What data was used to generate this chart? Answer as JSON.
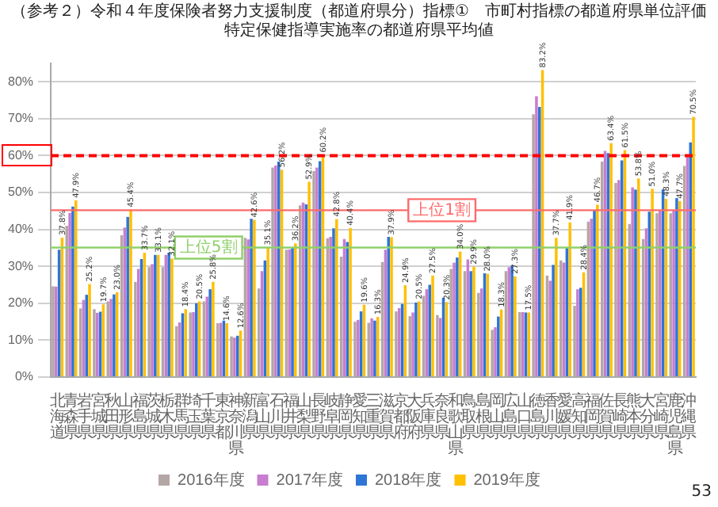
{
  "chart_data": {
    "type": "bar",
    "title": "（参考２）令和４年度保険者努力支援制度（都道府県分）指標①　市町村指標の都道府県単位評価",
    "subtitle": "特定保健指導実施率の都道府県平均値",
    "categories": [
      "北海道",
      "青森県",
      "岩手県",
      "宮城県",
      "秋田県",
      "山形県",
      "福島県",
      "茨城県",
      "栃木県",
      "群馬県",
      "埼玉県",
      "千葉県",
      "東京都",
      "神奈川県",
      "新潟県",
      "富山県",
      "石川県",
      "福井県",
      "山梨県",
      "長野県",
      "岐阜県",
      "静岡県",
      "愛知県",
      "三重県",
      "滋賀県",
      "京都府",
      "大阪府",
      "兵庫県",
      "奈良県",
      "和歌山県",
      "鳥取県",
      "島根県",
      "岡山県",
      "広島県",
      "山口県",
      "徳島県",
      "香川県",
      "愛媛県",
      "高知県",
      "福岡県",
      "佐賀県",
      "長崎県",
      "熊本県",
      "大分県",
      "宮崎県",
      "鹿児島県",
      "沖縄県"
    ],
    "series": [
      {
        "name": "2016年度",
        "color": "#b5a6a6",
        "values": [
          24.6,
          41,
          18.6,
          18.4,
          20.5,
          38.4,
          25.8,
          29.8,
          29.8,
          13.8,
          17.5,
          20.5,
          14.6,
          11,
          37.7,
          24,
          56.8,
          34.5,
          46.5,
          55.8,
          37.6,
          32.6,
          15,
          14.7,
          31.2,
          17.8,
          16.5,
          22,
          16.8,
          29.3,
          28.7,
          22.8,
          12.8,
          28.7,
          17.6,
          71.2,
          27.5,
          31.6,
          19.3,
          42.1,
          58.4,
          52.6,
          41.5,
          37.4,
          44.4,
          44.4,
          57.2
        ]
      },
      {
        "name": "2017年度",
        "color": "#c77dd0",
        "values": [
          24.5,
          44.5,
          20.9,
          17.4,
          21.2,
          40.5,
          29.3,
          30.6,
          33.1,
          14.8,
          17.6,
          21.8,
          14.7,
          10.7,
          37.3,
          28.7,
          57.3,
          34.6,
          47.3,
          56.8,
          38,
          37.4,
          15.5,
          15.9,
          34.5,
          18.7,
          17.5,
          23.8,
          16,
          31,
          31.9,
          24,
          13.5,
          29.8,
          17.6,
          76.1,
          26.1,
          31,
          23.8,
          42.9,
          61.3,
          53.4,
          51.4,
          40.3,
          45.2,
          45.2,
          59.6
        ]
      },
      {
        "name": "2018年度",
        "color": "#2e75d6",
        "values": [
          34.5,
          46.2,
          22.3,
          17.7,
          22.4,
          43.4,
          32,
          33.1,
          33.7,
          17.3,
          20,
          23.8,
          15.3,
          11.2,
          42.9,
          31.6,
          58.4,
          35.2,
          46.8,
          58.5,
          40.3,
          36.6,
          17.8,
          15.3,
          38,
          19.8,
          20.2,
          25,
          21.5,
          32.4,
          28.7,
          28.1,
          16.4,
          30.2,
          17.5,
          73.2,
          30.4,
          35.1,
          24.2,
          45.3,
          60.7,
          58.7,
          50.8,
          44.8,
          50.8,
          48.5,
          63.6
        ]
      },
      {
        "name": "2019年度",
        "color": "#ffc000",
        "values": [
          37.8,
          47.9,
          25.2,
          19.7,
          23,
          45.4,
          33.7,
          33.1,
          32.1,
          18.4,
          20.5,
          25.8,
          14.6,
          12.6,
          42.6,
          35.1,
          56.2,
          36.2,
          52.9,
          60.2,
          42.8,
          40.4,
          19.6,
          16.3,
          37.9,
          24.9,
          20.5,
          27.5,
          20.3,
          34,
          29.9,
          28,
          18.3,
          27.3,
          17.5,
          83.2,
          37.7,
          41.9,
          28.4,
          46.7,
          63.4,
          61.5,
          53.8,
          51,
          48.3,
          47.7,
          70.5
        ],
        "value_labels": [
          "37.8%",
          "47.9%",
          "25.2%",
          "19.7%",
          "23.0%",
          "45.4%",
          "33.7%",
          "33.1%",
          "32.1%",
          "18.4%",
          "20.5%",
          "25.8%",
          "14.6%",
          "12.6%",
          "42.6%",
          "35.1%",
          "56.2%",
          "36.2%",
          "52.9%",
          "60.2%",
          "42.8%",
          "40.4%",
          "19.6%",
          "16.3%",
          "37.9%",
          "24.9%",
          "20.5%",
          "27.5%",
          "20.3%",
          "34.0%",
          "29.9%",
          "28.0%",
          "18.3%",
          "27.3%",
          "17.5%",
          "83.2%",
          "37.7%",
          "41.9%",
          "28.4%",
          "46.7%",
          "63.4%",
          "61.5%",
          "53.8%",
          "51.0%",
          "48.3%",
          "47.7%",
          "70.5%"
        ]
      }
    ],
    "ylim": [
      0,
      85
    ],
    "yticks": [
      {
        "value": 0,
        "label": "0%"
      },
      {
        "value": 10,
        "label": "10%"
      },
      {
        "value": 20,
        "label": "20%"
      },
      {
        "value": 30,
        "label": "30%"
      },
      {
        "value": 40,
        "label": "40%"
      },
      {
        "value": 50,
        "label": "50%"
      },
      {
        "value": 60,
        "label": "60%"
      },
      {
        "value": 70,
        "label": "70%"
      },
      {
        "value": 80,
        "label": "80%"
      }
    ],
    "grid": "y",
    "legend": "bottom",
    "ref_lines": [
      {
        "axis": "y",
        "value": 60,
        "color": "#ff0000",
        "line_style": "dashed"
      },
      {
        "axis": "y",
        "value": 45.2,
        "label": "上位1割",
        "color": "#ff6b6b",
        "line_style": "solid"
      },
      {
        "axis": "y",
        "value": 35.1,
        "label": "上位5割",
        "color": "#8fd06a",
        "line_style": "solid"
      }
    ],
    "annotations": [
      "53"
    ]
  }
}
